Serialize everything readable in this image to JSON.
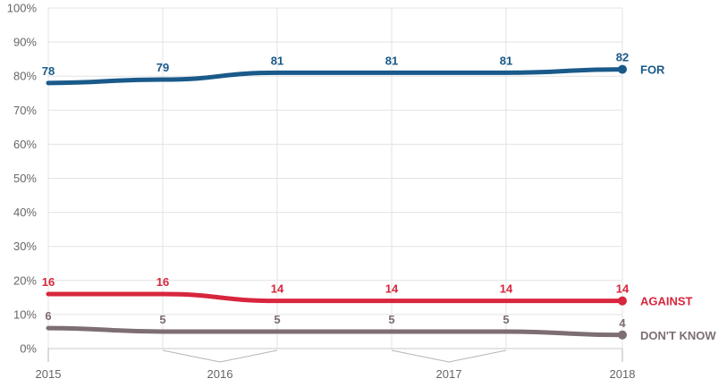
{
  "chart_data": {
    "type": "line",
    "ylim": [
      0,
      100
    ],
    "y_ticks": [
      0,
      10,
      20,
      30,
      40,
      50,
      60,
      70,
      80,
      90,
      100
    ],
    "y_tick_labels": [
      "0%",
      "10%",
      "20%",
      "30%",
      "40%",
      "50%",
      "60%",
      "70%",
      "80%",
      "90%",
      "100%"
    ],
    "x_tick_labels": [
      "2015",
      "2016",
      "2017",
      "2018"
    ],
    "grid": true,
    "legend": "right-of-last-point",
    "series": [
      {
        "name": "FOR",
        "color": "#1a5a8a",
        "values": [
          78,
          79,
          81,
          81,
          81,
          82
        ],
        "labels": [
          "78",
          "79",
          "81",
          "81",
          "81",
          "82"
        ]
      },
      {
        "name": "AGAINST",
        "color": "#d7263d",
        "values": [
          16,
          16,
          14,
          14,
          14,
          14
        ],
        "labels": [
          "16",
          "16",
          "14",
          "14",
          "14",
          "14"
        ]
      },
      {
        "name": "DON'T KNOW",
        "color": "#7d6e73",
        "values": [
          6,
          5,
          5,
          5,
          5,
          4
        ],
        "labels": [
          "6",
          "5",
          "5",
          "5",
          "5",
          "4"
        ]
      }
    ]
  }
}
